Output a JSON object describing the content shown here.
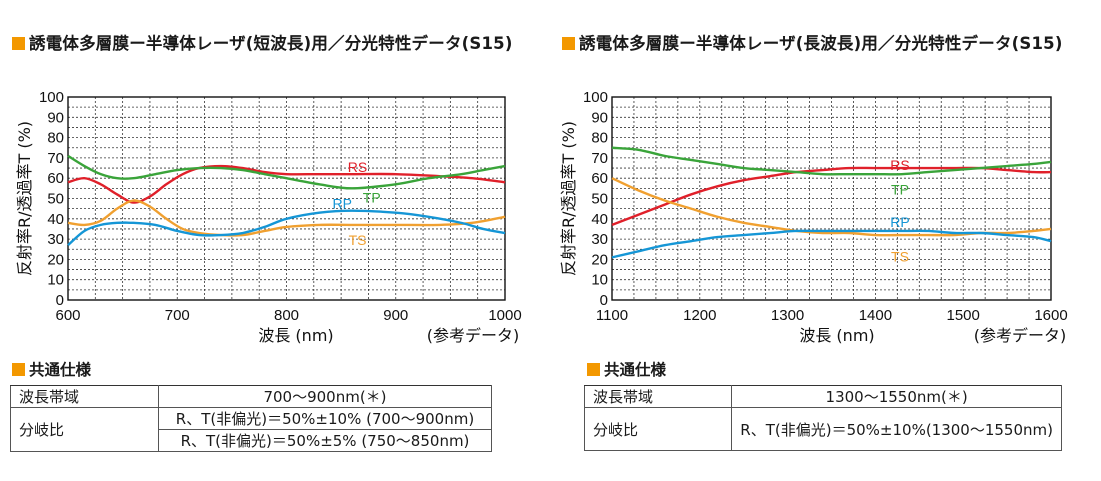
{
  "panels": [
    {
      "title": "誘電体多層膜ー半導体レーザ(短波長)用／分光特性データ(S15)",
      "note": "(参考データ)",
      "chart": {
        "type": "line",
        "xlabel": "波長 (nm)",
        "ylabel": "反射率R/透過率T (%)",
        "xlim": [
          600,
          1000
        ],
        "ylim": [
          0,
          100
        ],
        "xticks": [
          600,
          700,
          800,
          900,
          1000
        ],
        "yticks": [
          0,
          10,
          20,
          30,
          40,
          50,
          60,
          70,
          80,
          90,
          100
        ],
        "grid": true,
        "series": [
          {
            "name": "RS",
            "color": "#e0202a",
            "x": [
              600,
              615,
              630,
              645,
              660,
              675,
              690,
              705,
              720,
              740,
              760,
              780,
              800,
              830,
              860,
              900,
              940,
              970,
              1000
            ],
            "y": [
              58,
              60,
              57,
              52,
              48,
              51,
              57,
              62,
              65,
              66,
              65,
              63,
              62,
              62,
              62,
              62,
              61,
              60,
              58
            ]
          },
          {
            "name": "TP",
            "color": "#3aa43a",
            "x": [
              600,
              615,
              630,
              645,
              660,
              680,
              700,
              720,
              740,
              760,
              780,
              800,
              830,
              860,
              900,
              930,
              960,
              980,
              1000
            ],
            "y": [
              71,
              66,
              62,
              60,
              60,
              62,
              64,
              65,
              65,
              64,
              62,
              60,
              57,
              55,
              57,
              60,
              62,
              64,
              66
            ]
          },
          {
            "name": "TS",
            "color": "#f0a030",
            "x": [
              600,
              615,
              630,
              645,
              660,
              675,
              690,
              705,
              720,
              740,
              760,
              780,
              800,
              830,
              860,
              900,
              940,
              970,
              1000
            ],
            "y": [
              38,
              37,
              39,
              45,
              49,
              46,
              40,
              35,
              33,
              32,
              32,
              34,
              36,
              37,
              37,
              37,
              37,
              38,
              41
            ]
          },
          {
            "name": "RP",
            "color": "#1596d6",
            "x": [
              600,
              615,
              630,
              645,
              660,
              680,
              700,
              720,
              740,
              760,
              780,
              800,
              830,
              860,
              900,
              930,
              960,
              980,
              1000
            ],
            "y": [
              27,
              34,
              37,
              38,
              38,
              37,
              34,
              32,
              32,
              33,
              36,
              40,
              43,
              44,
              43,
              41,
              38,
              35,
              33
            ]
          }
        ],
        "labels": [
          {
            "text": "RS",
            "x": 865,
            "y": 66,
            "series": 0
          },
          {
            "text": "TP",
            "x": 878,
            "y": 51,
            "series": 1
          },
          {
            "text": "RP",
            "x": 851,
            "y": 48,
            "series": 3
          },
          {
            "text": "TS",
            "x": 865,
            "y": 30,
            "series": 2
          }
        ]
      },
      "spec": {
        "title": "共通仕様",
        "rows": [
          {
            "label": "波長帯域",
            "values": [
              "700〜900nm(＊)"
            ]
          },
          {
            "label": "分岐比",
            "values": [
              "R、T(非偏光)＝50%±10% (700〜900nm)",
              "R、T(非偏光)＝50%±5% (750〜850nm)"
            ]
          }
        ]
      }
    },
    {
      "title": "誘電体多層膜ー半導体レーザ(長波長)用／分光特性データ(S15)",
      "note": "(参考データ)",
      "chart": {
        "type": "line",
        "xlabel": "波長 (nm)",
        "ylabel": "反射率R/透過率T (%)",
        "xlim": [
          1100,
          1600
        ],
        "ylim": [
          0,
          100
        ],
        "xticks": [
          1100,
          1200,
          1300,
          1400,
          1500,
          1600
        ],
        "yticks": [
          0,
          10,
          20,
          30,
          40,
          50,
          60,
          70,
          80,
          90,
          100
        ],
        "grid": true,
        "series": [
          {
            "name": "RS",
            "color": "#e0202a",
            "x": [
              1100,
              1130,
              1160,
              1190,
              1220,
              1250,
              1280,
              1310,
              1340,
              1370,
              1400,
              1430,
              1460,
              1490,
              1520,
              1550,
              1580,
              1600
            ],
            "y": [
              37,
              42,
              47,
              52,
              56,
              59,
              61,
              63,
              64,
              65,
              65,
              65,
              65,
              65,
              65,
              64,
              63,
              63
            ]
          },
          {
            "name": "TP",
            "color": "#3aa43a",
            "x": [
              1100,
              1130,
              1160,
              1190,
              1220,
              1250,
              1280,
              1310,
              1340,
              1370,
              1400,
              1430,
              1460,
              1490,
              1520,
              1550,
              1580,
              1600
            ],
            "y": [
              75,
              74,
              71,
              69,
              67,
              65,
              64,
              63,
              62,
              62,
              62,
              62,
              63,
              64,
              65,
              66,
              67,
              68
            ]
          },
          {
            "name": "TS",
            "color": "#f0a030",
            "x": [
              1100,
              1130,
              1160,
              1190,
              1220,
              1250,
              1280,
              1310,
              1340,
              1370,
              1400,
              1430,
              1460,
              1490,
              1520,
              1550,
              1580,
              1600
            ],
            "y": [
              60,
              54,
              49,
              45,
              41,
              38,
              36,
              34,
              33,
              33,
              32,
              32,
              32,
              32,
              33,
              33,
              34,
              35
            ]
          },
          {
            "name": "RP",
            "color": "#1596d6",
            "x": [
              1100,
              1130,
              1160,
              1190,
              1220,
              1250,
              1280,
              1310,
              1340,
              1370,
              1400,
              1430,
              1460,
              1490,
              1520,
              1550,
              1580,
              1600
            ],
            "y": [
              21,
              24,
              27,
              29,
              31,
              32,
              33,
              34,
              34,
              34,
              34,
              34,
              34,
              33,
              33,
              32,
              31,
              29
            ]
          }
        ],
        "labels": [
          {
            "text": "RS",
            "x": 1428,
            "y": 67,
            "series": 0
          },
          {
            "text": "TP",
            "x": 1428,
            "y": 55,
            "series": 1
          },
          {
            "text": "RP",
            "x": 1428,
            "y": 39,
            "series": 3
          },
          {
            "text": "TS",
            "x": 1428,
            "y": 22,
            "series": 2
          }
        ]
      },
      "spec": {
        "title": "共通仕様",
        "rows": [
          {
            "label": "波長帯域",
            "values": [
              "1300〜1550nm(＊)"
            ]
          },
          {
            "label": "分岐比",
            "values": [
              "R、T(非偏光)＝50%±10%(1300〜1550nm)"
            ]
          }
        ]
      }
    }
  ]
}
